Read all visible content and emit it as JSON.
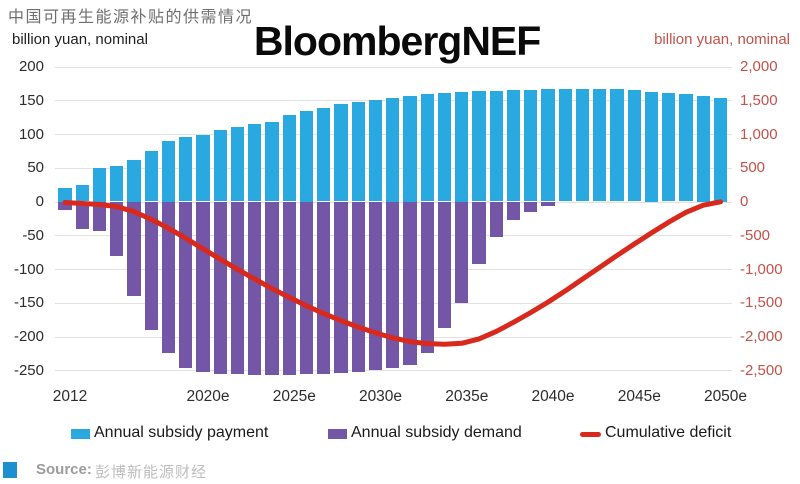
{
  "header": {
    "title_cn": "中国可再生能源补贴的供需情况",
    "brand": "BloombergNEF",
    "left_axis_unit": "billion yuan, nominal",
    "right_axis_unit": "billion yuan, nominal"
  },
  "legend": {
    "items": [
      {
        "label": "Annual subsidy payment",
        "color": "#29a9e0",
        "swatch": "rect"
      },
      {
        "label": "Annual subsidy demand",
        "color": "#7456a6",
        "swatch": "rect"
      },
      {
        "label": "Cumulative deficit",
        "color": "#d9291c",
        "swatch": "line"
      }
    ]
  },
  "footer": {
    "source_label": "Source:",
    "source_text": "彭博新能源财经"
  },
  "colors": {
    "payment_bar": "#29a9e0",
    "demand_bar": "#7456a6",
    "deficit_line": "#d9291c",
    "right_axis_text": "#c3524a",
    "gridline": "#e2e2e2"
  },
  "chart_data": {
    "type": "bar",
    "subtype": "combo-bar-line",
    "title": "中国可再生能源补贴的供需情况",
    "xlabel": "",
    "ylabel_left": "billion yuan, nominal",
    "ylabel_right": "billion yuan, nominal",
    "grid": true,
    "legend_position": "bottom",
    "x": [
      2012,
      2013,
      2014,
      2015,
      2016,
      2017,
      2018,
      2019,
      2020,
      2021,
      2022,
      2023,
      2024,
      2025,
      2026,
      2027,
      2028,
      2029,
      2030,
      2031,
      2032,
      2033,
      2034,
      2035,
      2036,
      2037,
      2038,
      2039,
      2040,
      2041,
      2042,
      2043,
      2044,
      2045,
      2046,
      2047,
      2048,
      2049,
      2050
    ],
    "xtick_labels": [
      {
        "index": 0,
        "label": "2012"
      },
      {
        "index": 8,
        "label": "2020e"
      },
      {
        "index": 13,
        "label": "2025e"
      },
      {
        "index": 18,
        "label": "2030e"
      },
      {
        "index": 23,
        "label": "2035e"
      },
      {
        "index": 28,
        "label": "2040e"
      },
      {
        "index": 33,
        "label": "2045e"
      },
      {
        "index": 38,
        "label": "2050e"
      }
    ],
    "left_axis": {
      "range": [
        -250,
        200
      ],
      "ticks": [
        200,
        150,
        100,
        50,
        0,
        -50,
        -100,
        -150,
        -200,
        -250
      ]
    },
    "right_axis": {
      "range": [
        -2500,
        2000
      ],
      "ticks": [
        "2,000",
        "1,500",
        "1,000",
        "500",
        "0",
        "-500",
        "-1,000",
        "-1,500",
        "-2,000",
        "-2,500"
      ],
      "tick_values": [
        2000,
        1500,
        1000,
        500,
        0,
        -500,
        -1000,
        -1500,
        -2000,
        -2500
      ]
    },
    "series": [
      {
        "name": "Annual subsidy payment",
        "type": "bar",
        "axis": "left",
        "color": "#29a9e0",
        "values": [
          20,
          25,
          50,
          52,
          62,
          75,
          90,
          95,
          99,
          106,
          111,
          115,
          118,
          128,
          134,
          139,
          144,
          148,
          151,
          154,
          157,
          159,
          161,
          163,
          164,
          164,
          165,
          165,
          166,
          166,
          167,
          167,
          166,
          165,
          163,
          161,
          159,
          157,
          154
        ]
      },
      {
        "name": "Annual subsidy demand",
        "type": "bar",
        "axis": "left",
        "color": "#7456a6",
        "values": [
          -13,
          -40,
          -44,
          -80,
          -140,
          -190,
          -224,
          -246,
          -252,
          -255,
          -256,
          -257,
          -257,
          -257,
          -256,
          -255,
          -254,
          -252,
          -250,
          -247,
          -242,
          -225,
          -188,
          -150,
          -93,
          -53,
          -27,
          -15,
          -6,
          0,
          0,
          0,
          0,
          0,
          0,
          0,
          0,
          0,
          0
        ]
      },
      {
        "name": "Cumulative deficit",
        "type": "line",
        "axis": "right",
        "color": "#d9291c",
        "values": [
          -15,
          -30,
          -45,
          -75,
          -150,
          -265,
          -395,
          -545,
          -700,
          -855,
          -1005,
          -1150,
          -1290,
          -1420,
          -1545,
          -1660,
          -1765,
          -1860,
          -1945,
          -2020,
          -2075,
          -2105,
          -2115,
          -2100,
          -2035,
          -1925,
          -1790,
          -1645,
          -1490,
          -1325,
          -1150,
          -975,
          -800,
          -630,
          -465,
          -305,
          -160,
          -55,
          -5
        ]
      }
    ]
  }
}
